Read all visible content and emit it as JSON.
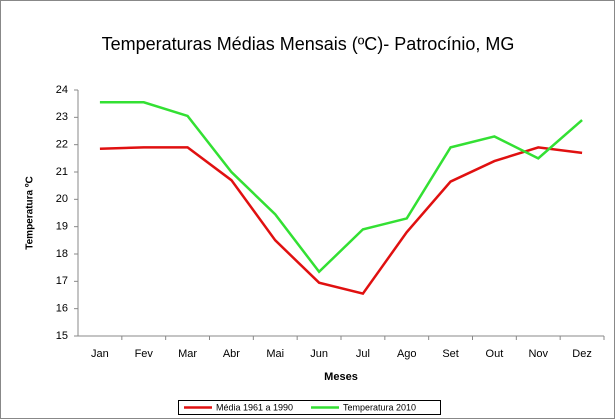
{
  "chart_data": {
    "type": "line",
    "title": "Temperaturas Médias Mensais (ºC)- Patrocínio, MG",
    "y_label": "Temperatura ºC",
    "x_label": "Meses",
    "categories": [
      "Jan",
      "Fev",
      "Mar",
      "Abr",
      "Mai",
      "Jun",
      "Jul",
      "Ago",
      "Set",
      "Out",
      "Nov",
      "Dez"
    ],
    "series": [
      {
        "name": "Média 1961 a 1990",
        "color": "#e01010",
        "values": [
          21.85,
          21.9,
          21.9,
          20.7,
          18.5,
          16.95,
          16.55,
          18.8,
          20.65,
          21.4,
          21.9,
          21.7
        ]
      },
      {
        "name": "Temperatura 2010",
        "color": "#33e033",
        "values": [
          23.55,
          23.55,
          23.05,
          21.0,
          19.45,
          17.35,
          18.9,
          19.3,
          21.9,
          22.3,
          21.5,
          22.9
        ]
      }
    ],
    "ylim": [
      15,
      24
    ],
    "yticks": [
      15,
      16,
      17,
      18,
      19,
      20,
      21,
      22,
      23,
      24
    ],
    "grid": false,
    "legend": "bottom"
  }
}
